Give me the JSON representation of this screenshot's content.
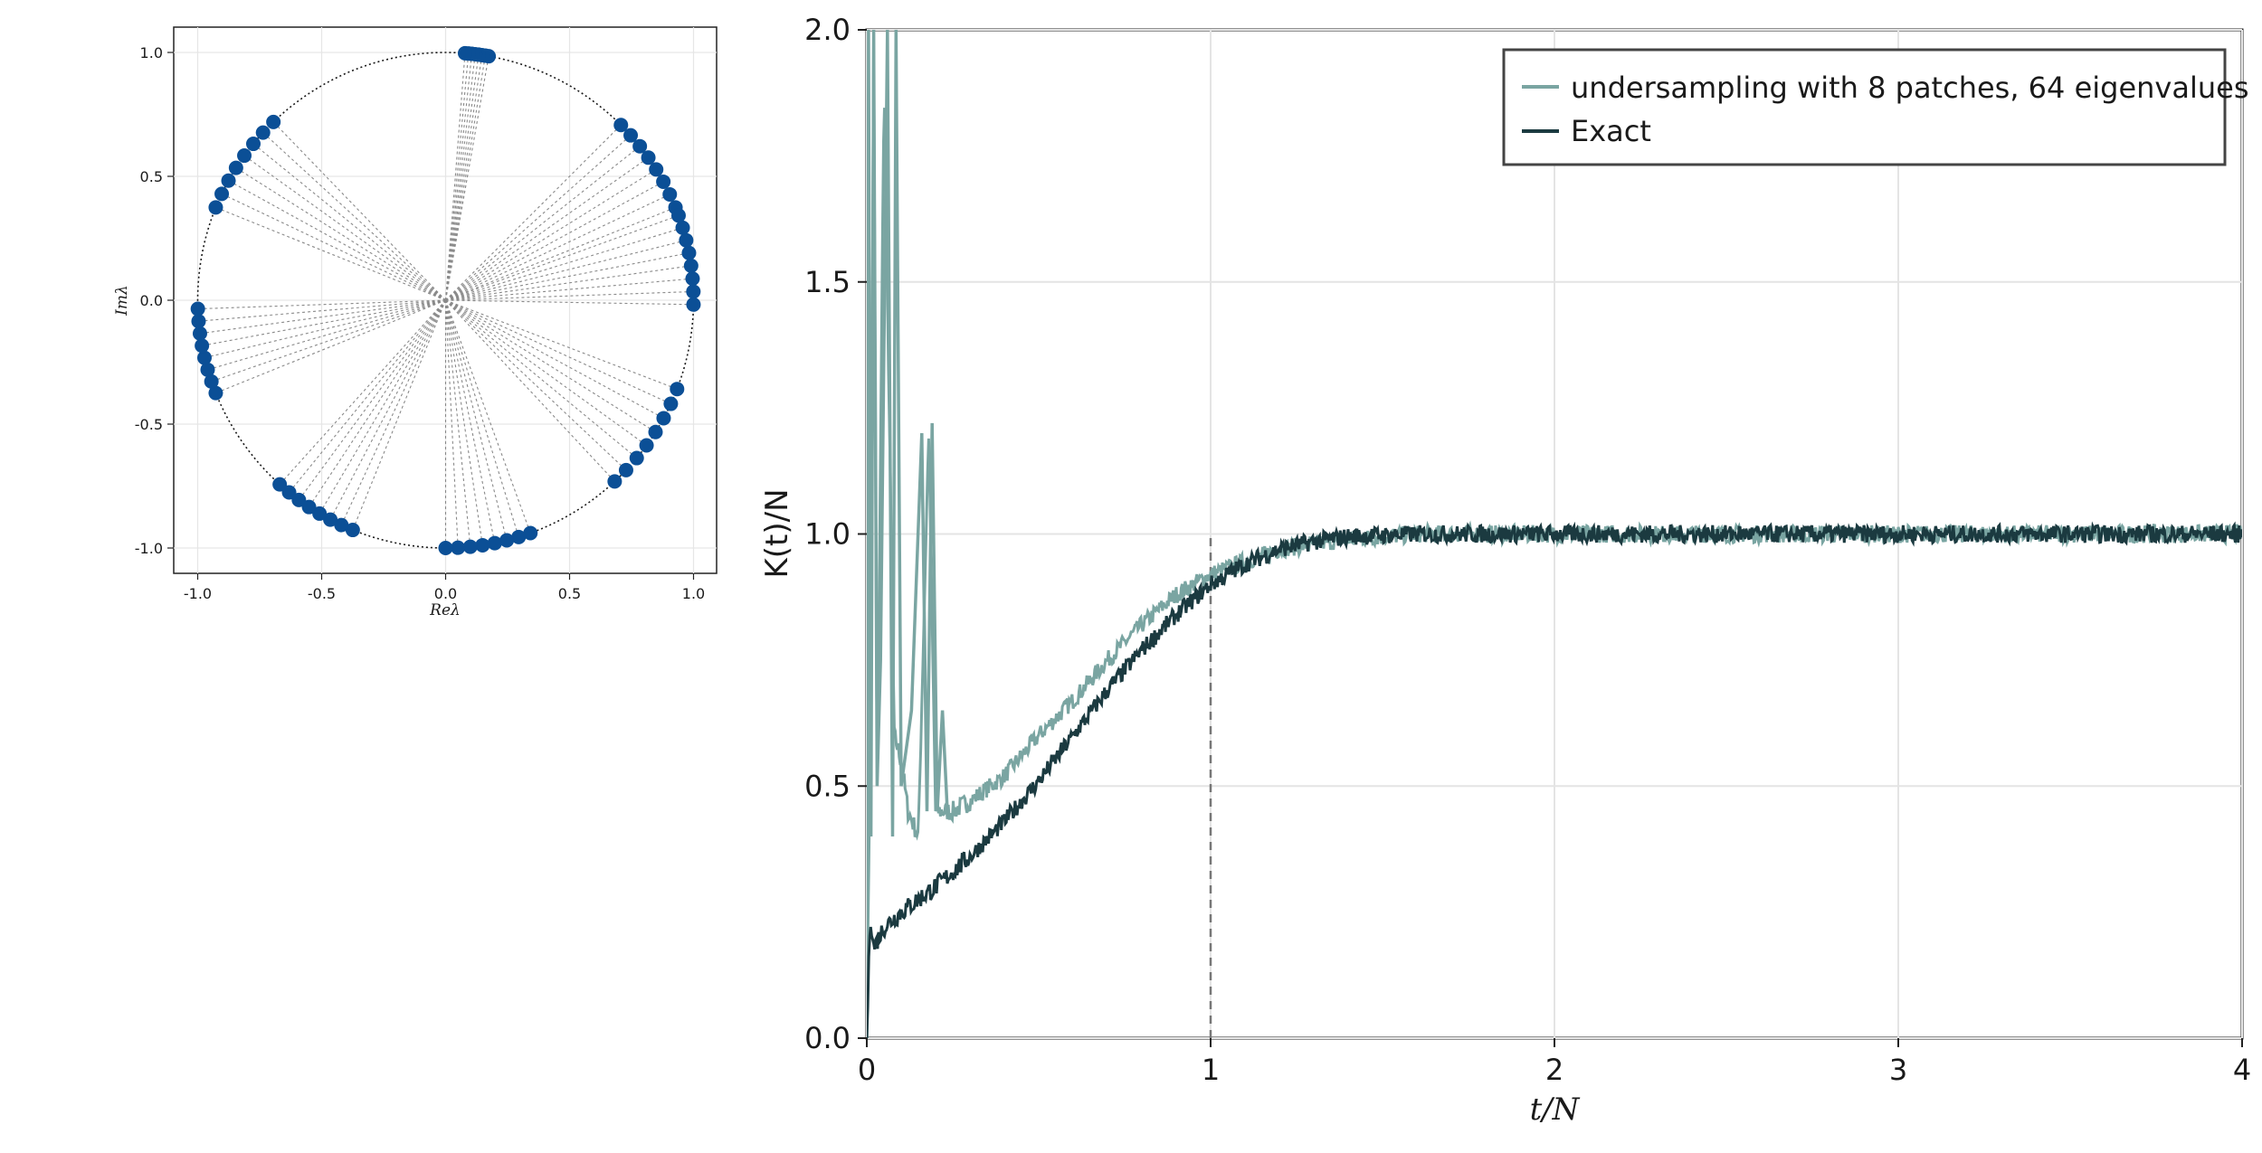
{
  "chart_data": [
    {
      "type": "scatter",
      "xlabel": "Reλ",
      "ylabel": "Imλ",
      "xlim": [
        -1.1,
        1.1
      ],
      "ylim": [
        -1.1,
        1.1
      ],
      "xticks": [
        "-1.0",
        "-0.5",
        "0.0",
        "0.5",
        "1.0"
      ],
      "yticks": [
        "-1.0",
        "-0.5",
        "0.0",
        "0.5",
        "1.0"
      ],
      "grid": true,
      "unit_circle": true,
      "rays_from_origin": true,
      "patches": 8,
      "eigenvalues_per_patch": 8,
      "patch_angles_deg": [
        [
          80,
          85.5
        ],
        [
          22,
          45
        ],
        [
          -1,
          20
        ],
        [
          -47,
          -21
        ],
        [
          -70,
          -90
        ],
        [
          -112,
          -132
        ],
        [
          -158,
          -178
        ],
        [
          134,
          158
        ]
      ],
      "point_color": "#0b4f96"
    },
    {
      "type": "line",
      "xlabel": "t/N",
      "ylabel": "K(t)/N",
      "xlim": [
        0,
        4
      ],
      "ylim": [
        0,
        2.0
      ],
      "xticks": [
        "0",
        "1",
        "2",
        "3",
        "4"
      ],
      "yticks": [
        "0.0",
        "0.5",
        "1.0",
        "1.5",
        "2.0"
      ],
      "grid": true,
      "legend_position": "top-right",
      "reference_line": {
        "x": 1,
        "y_range": [
          0,
          1
        ],
        "style": "dashed"
      },
      "series": [
        {
          "name": "undersampling with 8 patches, 64 eigenvalues",
          "color": "#7aa5a2",
          "x": [
            0,
            0.01,
            0.02,
            0.03,
            0.05,
            0.08,
            0.1,
            0.12,
            0.15,
            0.18,
            0.2,
            0.25,
            0.3,
            0.4,
            0.5,
            0.6,
            0.7,
            0.8,
            0.9,
            1.0,
            1.2,
            1.4,
            1.6,
            2.0,
            2.5,
            3.0,
            3.5,
            4.0
          ],
          "y": [
            0.0,
            0.6,
            2.0,
            0.45,
            1.9,
            0.6,
            0.55,
            0.45,
            0.4,
            1.2,
            0.45,
            0.45,
            0.47,
            0.52,
            0.6,
            0.67,
            0.75,
            0.82,
            0.88,
            0.92,
            0.97,
            0.99,
            1.0,
            1.0,
            1.0,
            1.0,
            1.0,
            1.0
          ]
        },
        {
          "name": "Exact",
          "color": "#1b3a40",
          "x": [
            0,
            0.01,
            0.02,
            0.05,
            0.1,
            0.2,
            0.3,
            0.4,
            0.5,
            0.6,
            0.7,
            0.8,
            0.9,
            1.0,
            1.1,
            1.2,
            1.3,
            1.4,
            1.6,
            2.0,
            2.5,
            3.0,
            3.5,
            4.0
          ],
          "y": [
            0.0,
            0.25,
            0.18,
            0.22,
            0.25,
            0.3,
            0.36,
            0.43,
            0.51,
            0.6,
            0.69,
            0.77,
            0.84,
            0.9,
            0.94,
            0.97,
            0.985,
            0.995,
            1.0,
            1.0,
            1.0,
            1.0,
            1.0,
            1.0
          ]
        }
      ]
    }
  ]
}
